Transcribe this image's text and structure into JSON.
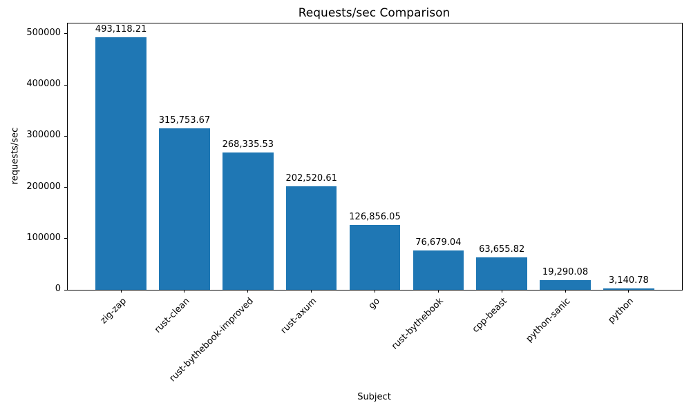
{
  "chart_data": {
    "type": "bar",
    "title": "Requests/sec Comparison",
    "xlabel": "Subject",
    "ylabel": "requests/sec",
    "categories": [
      "zig-zap",
      "rust-clean",
      "rust-bythebook-improved",
      "rust-axum",
      "go",
      "rust-bythebook",
      "cpp-beast",
      "python-sanic",
      "python"
    ],
    "values": [
      493118.21,
      315753.67,
      268335.53,
      202520.61,
      126856.05,
      76679.04,
      63655.82,
      19290.08,
      3140.78
    ],
    "value_labels": [
      "493,118.21",
      "315,753.67",
      "268,335.53",
      "202,520.61",
      "126,856.05",
      "76,679.04",
      "63,655.82",
      "19,290.08",
      "3,140.78"
    ],
    "bar_color": "#1f77b4",
    "bar_width": 0.8,
    "xlim": [
      -0.84,
      8.84
    ],
    "ylim": [
      0,
      520000
    ],
    "yticks": [
      0,
      100000,
      200000,
      300000,
      400000,
      500000
    ],
    "x_tick_rotation_deg": 45,
    "grid": false,
    "legend": null
  }
}
